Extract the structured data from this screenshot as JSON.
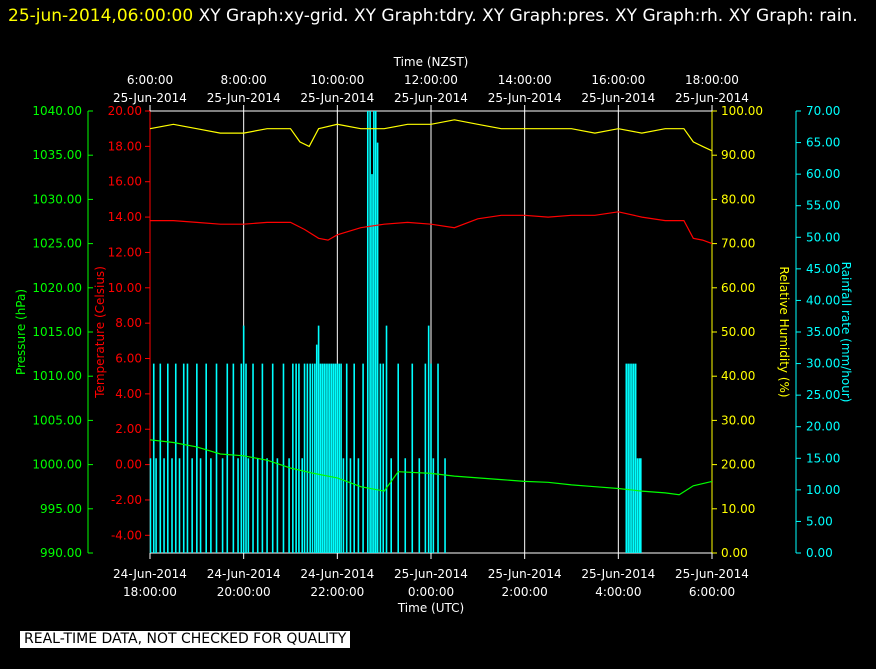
{
  "header": {
    "timestamp": "25-jun-2014,06:00:00",
    "title": "XY Graph:xy-grid.  XY Graph:tdry.  XY Graph:pres.  XY Graph:rh.  XY Graph: rain."
  },
  "footer_note": "REAL-TIME DATA, NOT CHECKED FOR QUALITY",
  "colors": {
    "background": "#000000",
    "grid": "#ffffff",
    "pressure": "#00ff00",
    "temperature": "#ff0000",
    "humidity": "#ffff00",
    "rain": "#00ffff"
  },
  "chart_data": {
    "type": "line",
    "top_axis": {
      "label": "Time (NZST)",
      "ticks": [
        {
          "time": "6:00:00",
          "date": "25-Jun-2014"
        },
        {
          "time": "8:00:00",
          "date": "25-Jun-2014"
        },
        {
          "time": "10:00:00",
          "date": "25-Jun-2014"
        },
        {
          "time": "12:00:00",
          "date": "25-Jun-2014"
        },
        {
          "time": "14:00:00",
          "date": "25-Jun-2014"
        },
        {
          "time": "16:00:00",
          "date": "25-Jun-2014"
        },
        {
          "time": "18:00:00",
          "date": "25-Jun-2014"
        }
      ]
    },
    "bottom_axis": {
      "label": "Time (UTC)",
      "range_hours": [
        18,
        30
      ],
      "ticks": [
        {
          "date": "24-Jun-2014",
          "time": "18:00:00"
        },
        {
          "date": "24-Jun-2014",
          "time": "20:00:00"
        },
        {
          "date": "24-Jun-2014",
          "time": "22:00:00"
        },
        {
          "date": "25-Jun-2014",
          "time": "0:00:00"
        },
        {
          "date": "25-Jun-2014",
          "time": "2:00:00"
        },
        {
          "date": "25-Jun-2014",
          "time": "4:00:00"
        },
        {
          "date": "25-Jun-2014",
          "time": "6:00:00"
        }
      ]
    },
    "axes": {
      "pressure": {
        "label": "Pressure (hPa)",
        "range": [
          990,
          1040
        ],
        "ticks": [
          "990.00",
          "995.00",
          "1000.00",
          "1005.00",
          "1010.00",
          "1015.00",
          "1020.00",
          "1025.00",
          "1030.00",
          "1035.00",
          "1040.00"
        ]
      },
      "temperature": {
        "label": "Temperature (Celsius)",
        "range": [
          -5,
          20
        ],
        "ticks": [
          "-4.00",
          "-2.00",
          "0.00",
          "2.00",
          "4.00",
          "6.00",
          "8.00",
          "10.00",
          "12.00",
          "14.00",
          "16.00",
          "18.00",
          "20.00"
        ]
      },
      "humidity": {
        "label": "Relative Humidity (%)",
        "range": [
          0,
          100
        ],
        "ticks": [
          "0.00",
          "10.00",
          "20.00",
          "30.00",
          "40.00",
          "50.00",
          "60.00",
          "70.00",
          "80.00",
          "90.00",
          "100.00"
        ]
      },
      "rain": {
        "label": "Rainfall rate (mm/hour)",
        "range": [
          0,
          70
        ],
        "ticks": [
          "0.00",
          "5.00",
          "10.00",
          "15.00",
          "20.00",
          "25.00",
          "30.00",
          "35.00",
          "40.00",
          "45.00",
          "50.00",
          "55.00",
          "60.00",
          "65.00",
          "70.00"
        ]
      }
    },
    "series": [
      {
        "key": "humidity",
        "x": [
          18.0,
          18.5,
          19.0,
          19.5,
          20.0,
          20.5,
          21.0,
          21.2,
          21.4,
          21.6,
          22.0,
          22.5,
          23.0,
          23.5,
          24.0,
          24.5,
          25.0,
          25.5,
          26.0,
          26.5,
          27.0,
          27.5,
          28.0,
          28.5,
          29.0,
          29.4,
          29.6,
          29.8,
          30.0
        ],
        "y": [
          96,
          97,
          96,
          95,
          95,
          96,
          96,
          93,
          92,
          96,
          97,
          96,
          96,
          97,
          97,
          98,
          97,
          96,
          96,
          96,
          96,
          95,
          96,
          95,
          96,
          96,
          93,
          92,
          91
        ]
      },
      {
        "key": "temperature",
        "x": [
          18.0,
          18.5,
          19.0,
          19.5,
          20.0,
          20.5,
          21.0,
          21.3,
          21.6,
          21.8,
          22.0,
          22.5,
          23.0,
          23.5,
          24.0,
          24.5,
          25.0,
          25.5,
          26.0,
          26.5,
          27.0,
          27.5,
          28.0,
          28.5,
          29.0,
          29.4,
          29.6,
          29.8,
          30.0
        ],
        "y": [
          13.8,
          13.8,
          13.7,
          13.6,
          13.6,
          13.7,
          13.7,
          13.3,
          12.8,
          12.7,
          13.0,
          13.4,
          13.6,
          13.7,
          13.6,
          13.4,
          13.9,
          14.1,
          14.1,
          14.0,
          14.1,
          14.1,
          14.3,
          14.0,
          13.8,
          13.8,
          12.8,
          12.7,
          12.5
        ]
      },
      {
        "key": "pressure",
        "x": [
          18.0,
          18.5,
          19.0,
          19.5,
          20.0,
          20.5,
          21.0,
          21.5,
          22.0,
          22.5,
          23.0,
          23.3,
          24.0,
          24.5,
          25.0,
          25.5,
          26.0,
          26.5,
          27.0,
          27.5,
          28.0,
          28.5,
          29.0,
          29.3,
          29.6,
          30.0
        ],
        "y": [
          1002.8,
          1002.5,
          1002.0,
          1001.2,
          1001.0,
          1000.5,
          999.6,
          999.0,
          998.5,
          997.5,
          997.0,
          999.2,
          999.0,
          998.7,
          998.5,
          998.3,
          998.1,
          998.0,
          997.7,
          997.5,
          997.3,
          997.0,
          996.8,
          996.6,
          997.6,
          998.1
        ]
      }
    ],
    "rain_bars": [
      {
        "x": 18.01,
        "y": 15
      },
      {
        "x": 18.08,
        "y": 30
      },
      {
        "x": 18.13,
        "y": 15
      },
      {
        "x": 18.22,
        "y": 30
      },
      {
        "x": 18.3,
        "y": 15
      },
      {
        "x": 18.38,
        "y": 30
      },
      {
        "x": 18.47,
        "y": 15
      },
      {
        "x": 18.55,
        "y": 30
      },
      {
        "x": 18.63,
        "y": 15
      },
      {
        "x": 18.72,
        "y": 30
      },
      {
        "x": 18.8,
        "y": 30
      },
      {
        "x": 18.9,
        "y": 15
      },
      {
        "x": 19.0,
        "y": 30
      },
      {
        "x": 19.08,
        "y": 15
      },
      {
        "x": 19.2,
        "y": 30
      },
      {
        "x": 19.3,
        "y": 15
      },
      {
        "x": 19.42,
        "y": 30
      },
      {
        "x": 19.55,
        "y": 15
      },
      {
        "x": 19.65,
        "y": 30
      },
      {
        "x": 19.78,
        "y": 30
      },
      {
        "x": 19.88,
        "y": 15
      },
      {
        "x": 19.95,
        "y": 30
      },
      {
        "x": 20.0,
        "y": 36
      },
      {
        "x": 20.05,
        "y": 30
      },
      {
        "x": 20.1,
        "y": 15
      },
      {
        "x": 20.2,
        "y": 30
      },
      {
        "x": 20.3,
        "y": 15
      },
      {
        "x": 20.4,
        "y": 30
      },
      {
        "x": 20.5,
        "y": 15
      },
      {
        "x": 20.62,
        "y": 30
      },
      {
        "x": 20.72,
        "y": 15
      },
      {
        "x": 20.85,
        "y": 30
      },
      {
        "x": 20.97,
        "y": 15
      },
      {
        "x": 21.05,
        "y": 30
      },
      {
        "x": 21.12,
        "y": 30
      },
      {
        "x": 21.18,
        "y": 30
      },
      {
        "x": 21.25,
        "y": 15
      },
      {
        "x": 21.3,
        "y": 30
      },
      {
        "x": 21.36,
        "y": 30
      },
      {
        "x": 21.42,
        "y": 30
      },
      {
        "x": 21.47,
        "y": 30
      },
      {
        "x": 21.52,
        "y": 30
      },
      {
        "x": 21.56,
        "y": 33
      },
      {
        "x": 21.6,
        "y": 36
      },
      {
        "x": 21.64,
        "y": 30
      },
      {
        "x": 21.68,
        "y": 30
      },
      {
        "x": 21.72,
        "y": 30
      },
      {
        "x": 21.76,
        "y": 30
      },
      {
        "x": 21.8,
        "y": 30
      },
      {
        "x": 21.84,
        "y": 30
      },
      {
        "x": 21.88,
        "y": 30
      },
      {
        "x": 21.92,
        "y": 30
      },
      {
        "x": 21.96,
        "y": 30
      },
      {
        "x": 22.0,
        "y": 30
      },
      {
        "x": 22.04,
        "y": 30
      },
      {
        "x": 22.08,
        "y": 30
      },
      {
        "x": 22.13,
        "y": 15
      },
      {
        "x": 22.2,
        "y": 30
      },
      {
        "x": 22.28,
        "y": 15
      },
      {
        "x": 22.36,
        "y": 30
      },
      {
        "x": 22.45,
        "y": 15
      },
      {
        "x": 22.55,
        "y": 30
      },
      {
        "x": 22.65,
        "y": 70
      },
      {
        "x": 22.7,
        "y": 70
      },
      {
        "x": 22.74,
        "y": 60
      },
      {
        "x": 22.78,
        "y": 70
      },
      {
        "x": 22.82,
        "y": 70
      },
      {
        "x": 22.86,
        "y": 65
      },
      {
        "x": 22.92,
        "y": 30
      },
      {
        "x": 22.98,
        "y": 30
      },
      {
        "x": 23.05,
        "y": 36
      },
      {
        "x": 23.15,
        "y": 15
      },
      {
        "x": 23.3,
        "y": 30
      },
      {
        "x": 23.45,
        "y": 15
      },
      {
        "x": 23.6,
        "y": 30
      },
      {
        "x": 23.75,
        "y": 15
      },
      {
        "x": 23.88,
        "y": 30
      },
      {
        "x": 23.95,
        "y": 36
      },
      {
        "x": 24.0,
        "y": 30
      },
      {
        "x": 24.05,
        "y": 15
      },
      {
        "x": 24.15,
        "y": 30
      },
      {
        "x": 24.3,
        "y": 15
      },
      {
        "x": 28.17,
        "y": 30
      },
      {
        "x": 28.21,
        "y": 30
      },
      {
        "x": 28.25,
        "y": 30
      },
      {
        "x": 28.29,
        "y": 30
      },
      {
        "x": 28.33,
        "y": 30
      },
      {
        "x": 28.37,
        "y": 30
      },
      {
        "x": 28.41,
        "y": 15
      },
      {
        "x": 28.45,
        "y": 15
      },
      {
        "x": 28.48,
        "y": 15
      }
    ]
  }
}
